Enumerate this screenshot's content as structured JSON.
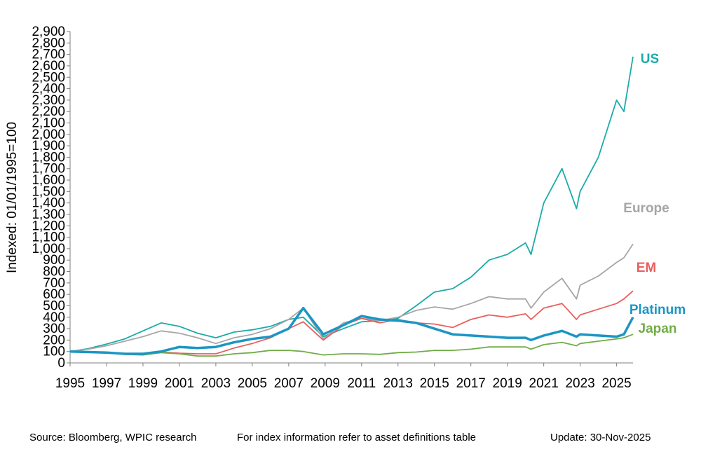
{
  "chart_data": {
    "type": "line",
    "y_label": "Indexed: 01/01/1995=100",
    "source": "Source: Bloomberg, WPIC research",
    "note": "For index information refer to asset definitions table",
    "update": "Update: 30-Nov-2025",
    "x": [
      1995,
      1996,
      1997,
      1998,
      1999,
      2000,
      2001,
      2002,
      2003,
      2004,
      2005,
      2006,
      2007,
      2007.8,
      2008.9,
      2010,
      2011,
      2012,
      2013,
      2014,
      2015,
      2016,
      2017,
      2018,
      2019,
      2020,
      2020.3,
      2021,
      2022,
      2022.8,
      2023,
      2024,
      2025,
      2025.4,
      2025.9
    ],
    "xlim": [
      1995,
      2025.9
    ],
    "xticks": [
      1995,
      1997,
      1999,
      2001,
      2003,
      2005,
      2007,
      2009,
      2011,
      2013,
      2015,
      2017,
      2019,
      2021,
      2023,
      2025
    ],
    "ylim": [
      0,
      2900
    ],
    "yticks": [
      0,
      100,
      200,
      300,
      400,
      500,
      600,
      700,
      800,
      900,
      {
        "value": 1000,
        "label": "1,000"
      },
      {
        "value": 1100,
        "label": "1,100"
      },
      {
        "value": 1200,
        "label": "1,200"
      },
      {
        "value": 1300,
        "label": "1,300"
      },
      {
        "value": 1400,
        "label": "1,400"
      },
      {
        "value": 1500,
        "label": "1,500"
      },
      {
        "value": 1600,
        "label": "1,600"
      },
      {
        "value": 1700,
        "label": "1,700"
      },
      {
        "value": 1800,
        "label": "1,800"
      },
      {
        "value": 1900,
        "label": "1,900"
      },
      {
        "value": 2000,
        "label": "2,000"
      },
      {
        "value": 2100,
        "label": "2,100"
      },
      {
        "value": 2200,
        "label": "2,200"
      },
      {
        "value": 2300,
        "label": "2,300"
      },
      {
        "value": 2400,
        "label": "2,400"
      },
      {
        "value": 2500,
        "label": "2,500"
      },
      {
        "value": 2600,
        "label": "2,600"
      },
      {
        "value": 2700,
        "label": "2,700"
      },
      {
        "value": 2800,
        "label": "2,800"
      },
      {
        "value": 2900,
        "label": "2,900"
      }
    ],
    "series": [
      {
        "name": "US",
        "color": "#1aaca8",
        "values": [
          100,
          125,
          165,
          210,
          280,
          350,
          320,
          260,
          220,
          270,
          290,
          320,
          380,
          400,
          230,
          300,
          360,
          370,
          390,
          500,
          620,
          650,
          750,
          900,
          950,
          1050,
          950,
          1400,
          1700,
          1350,
          1500,
          1800,
          2300,
          2200,
          2680
        ]
      },
      {
        "name": "Europe",
        "color": "#a6a6a6",
        "values": [
          100,
          120,
          150,
          190,
          230,
          280,
          260,
          220,
          170,
          220,
          250,
          300,
          380,
          480,
          210,
          350,
          390,
          370,
          400,
          460,
          490,
          470,
          520,
          580,
          560,
          560,
          480,
          620,
          740,
          560,
          680,
          760,
          880,
          920,
          1040
        ]
      },
      {
        "name": "EM",
        "color": "#e8605e",
        "values": [
          100,
          95,
          90,
          75,
          70,
          95,
          85,
          80,
          80,
          130,
          170,
          220,
          300,
          360,
          200,
          330,
          390,
          350,
          380,
          350,
          340,
          310,
          380,
          420,
          400,
          430,
          380,
          480,
          520,
          380,
          420,
          470,
          520,
          560,
          630
        ]
      },
      {
        "name": "Japan",
        "color": "#70ad47",
        "values": [
          100,
          95,
          85,
          80,
          70,
          90,
          80,
          60,
          60,
          80,
          90,
          110,
          110,
          100,
          70,
          80,
          80,
          75,
          90,
          95,
          110,
          110,
          120,
          140,
          140,
          140,
          120,
          160,
          180,
          150,
          170,
          190,
          210,
          220,
          250
        ]
      },
      {
        "name": "Platinum",
        "color": "#1b96c4",
        "values": [
          100,
          95,
          90,
          80,
          80,
          100,
          140,
          130,
          140,
          180,
          210,
          230,
          300,
          480,
          250,
          330,
          410,
          380,
          370,
          350,
          300,
          250,
          240,
          230,
          220,
          220,
          200,
          240,
          280,
          230,
          250,
          240,
          230,
          250,
          400
        ]
      }
    ]
  }
}
